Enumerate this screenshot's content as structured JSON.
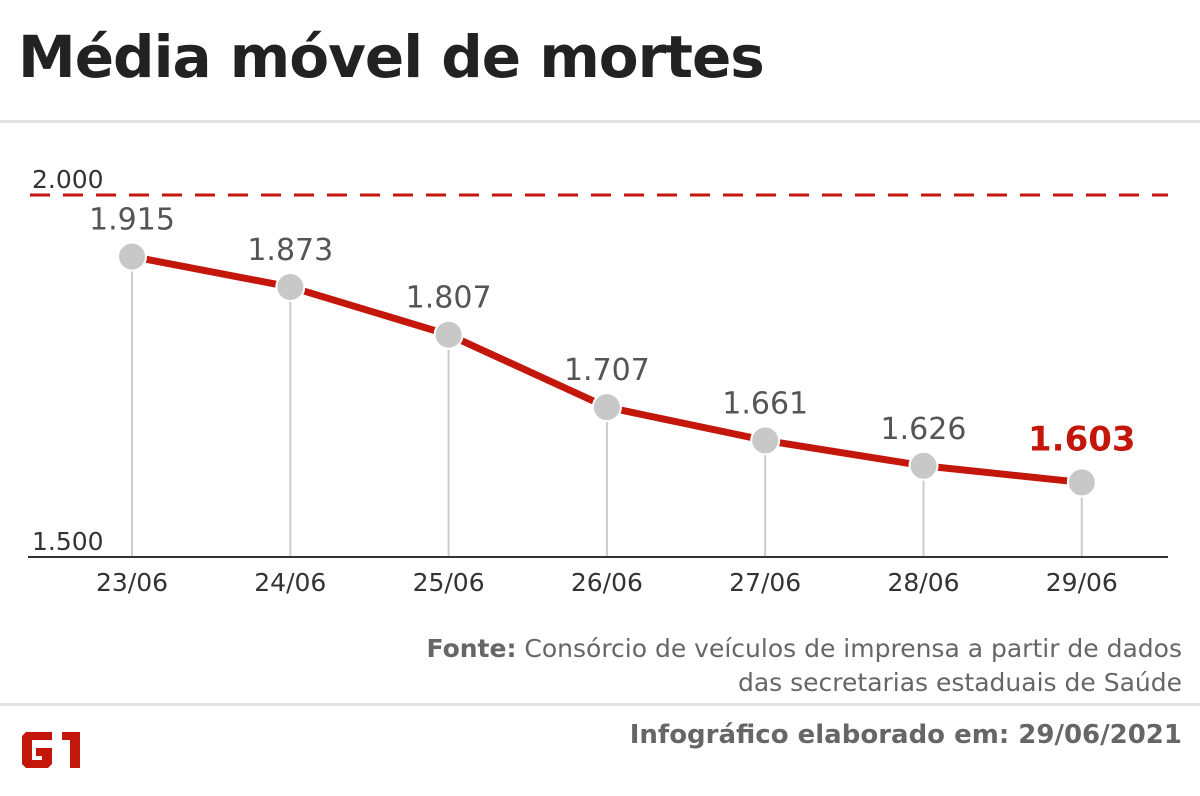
{
  "title": "Média móvel de mortes",
  "source": {
    "label": "Fonte:",
    "text": "Consórcio de veículos de imprensa a partir de dados das secretarias estaduais de Saúde"
  },
  "credit": "Infográfico elaborado em: 29/06/2021",
  "brand": {
    "logo_text": "G1",
    "color": "#c4170c"
  },
  "chart_data": {
    "type": "line",
    "categories": [
      "23/06",
      "24/06",
      "25/06",
      "26/06",
      "27/06",
      "28/06",
      "29/06"
    ],
    "values": [
      1915,
      1873,
      1807,
      1707,
      1661,
      1626,
      1603
    ],
    "value_labels": [
      "1.915",
      "1.873",
      "1.807",
      "1.707",
      "1.661",
      "1.626",
      "1.603"
    ],
    "ylim": [
      1500,
      2000
    ],
    "y_ticks": [
      {
        "value": 1500,
        "label": "1.500"
      },
      {
        "value": 2000,
        "label": "2.000"
      }
    ],
    "reference_line": {
      "value": 2000,
      "style": "dashed"
    },
    "highlight_last": true,
    "colors": {
      "line": "#c4170c",
      "marker": "#c8c8c8",
      "label": "#555555",
      "highlight": "#c4170c",
      "axis": "#333333",
      "stem": "#cccccc"
    }
  }
}
